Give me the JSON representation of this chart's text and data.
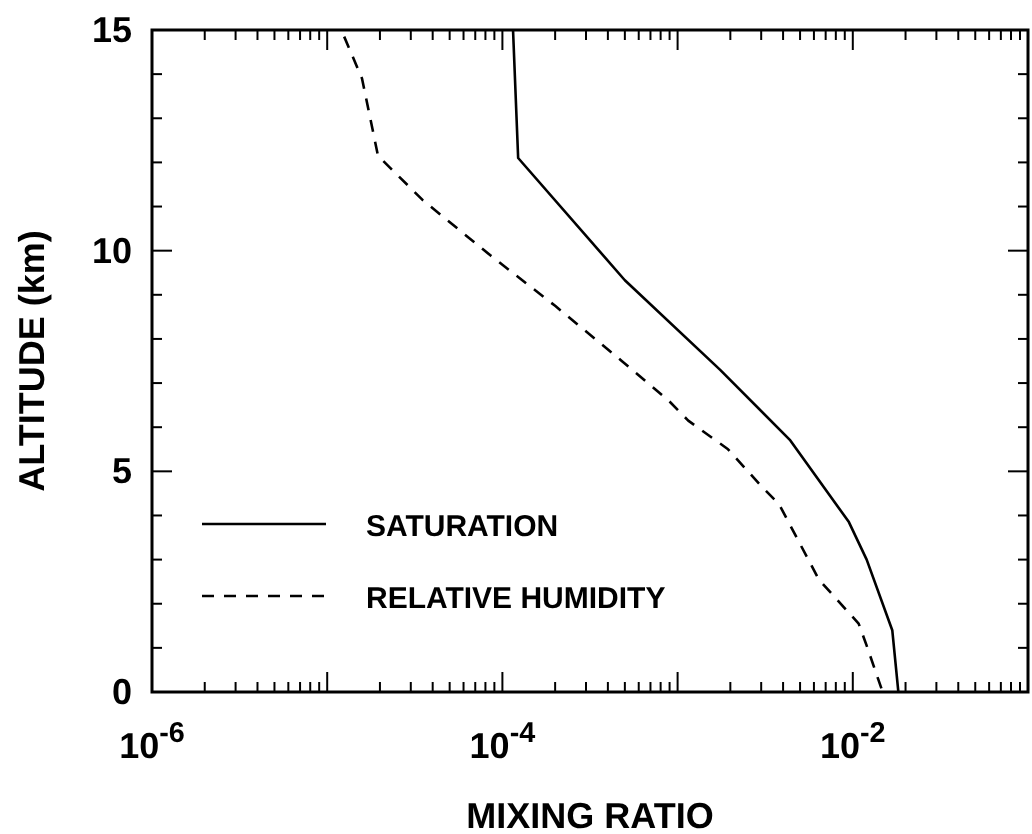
{
  "chart_data": {
    "type": "line",
    "xlabel": "MIXING RATIO",
    "ylabel": "ALTITUDE (km)",
    "log": "x",
    "xlim": [
      1e-06,
      0.1
    ],
    "ylim": [
      0,
      15
    ],
    "xticks": [
      {
        "value": 1e-06,
        "label": "10$^{-6}$"
      },
      {
        "value": 2e-06,
        "label": null
      },
      {
        "value": 3e-06,
        "label": null
      },
      {
        "value": 4e-06,
        "label": null
      },
      {
        "value": 5e-06,
        "label": null
      },
      {
        "value": 6e-06,
        "label": null
      },
      {
        "value": 7e-06,
        "label": null
      },
      {
        "value": 8e-06,
        "label": null
      },
      {
        "value": 9e-06,
        "label": null
      },
      {
        "value": 1e-05,
        "label": null
      },
      {
        "value": 2e-05,
        "label": null
      },
      {
        "value": 3e-05,
        "label": null
      },
      {
        "value": 4e-05,
        "label": null
      },
      {
        "value": 5e-05,
        "label": null
      },
      {
        "value": 6e-05,
        "label": null
      },
      {
        "value": 7e-05,
        "label": null
      },
      {
        "value": 8e-05,
        "label": null
      },
      {
        "value": 9e-05,
        "label": null
      },
      {
        "value": 0.0001,
        "label": "10$^{-4}$"
      },
      {
        "value": 0.0002,
        "label": null
      },
      {
        "value": 0.0003,
        "label": null
      },
      {
        "value": 0.0004,
        "label": null
      },
      {
        "value": 0.0005,
        "label": null
      },
      {
        "value": 0.0006,
        "label": null
      },
      {
        "value": 0.0007,
        "label": null
      },
      {
        "value": 0.0008,
        "label": null
      },
      {
        "value": 0.0009,
        "label": null
      },
      {
        "value": 0.001,
        "label": null
      },
      {
        "value": 0.002,
        "label": null
      },
      {
        "value": 0.003,
        "label": null
      },
      {
        "value": 0.004,
        "label": null
      },
      {
        "value": 0.005,
        "label": null
      },
      {
        "value": 0.006,
        "label": null
      },
      {
        "value": 0.007,
        "label": null
      },
      {
        "value": 0.008,
        "label": null
      },
      {
        "value": 0.009,
        "label": null
      },
      {
        "value": 0.01,
        "label": "10$^{-2}$"
      },
      {
        "value": 0.02,
        "label": null
      },
      {
        "value": 0.03,
        "label": null
      },
      {
        "value": 0.04,
        "label": null
      },
      {
        "value": 0.05,
        "label": null
      },
      {
        "value": 0.06,
        "label": null
      },
      {
        "value": 0.07,
        "label": null
      },
      {
        "value": 0.08,
        "label": null
      },
      {
        "value": 0.09,
        "label": null
      },
      {
        "value": 0.1,
        "label": null
      }
    ],
    "yticks": [
      0,
      {
        "value": 1,
        "label": null
      },
      {
        "value": 2,
        "label": null
      },
      {
        "value": 3,
        "label": null
      },
      {
        "value": 4,
        "label": null
      },
      5,
      {
        "value": 6,
        "label": null
      },
      {
        "value": 7,
        "label": null
      },
      {
        "value": 8,
        "label": null
      },
      {
        "value": 9,
        "label": null
      },
      10,
      {
        "value": 11,
        "label": null
      },
      {
        "value": 12,
        "label": null
      },
      {
        "value": 13,
        "label": null
      },
      {
        "value": 14,
        "label": null
      },
      15
    ],
    "legend": "left",
    "grid": false,
    "marker": "none",
    "series": [
      {
        "name": "SATURATION",
        "color": "#000000",
        "line_style": "solid",
        "x": [
          0.000115,
          0.000123,
          0.0005,
          0.00175,
          0.0044,
          0.0095,
          0.012,
          0.0168,
          0.0182
        ],
        "values": [
          15,
          12.1,
          9.33,
          7.3,
          5.7,
          3.85,
          3.0,
          1.4,
          0
        ]
      },
      {
        "name": "RELATIVE HUMIDITY",
        "color": "#000000",
        "line_style": "dashed",
        "x": [
          1.25e-05,
          1.58e-05,
          1.95e-05,
          3.5e-05,
          8.5e-05,
          0.0002,
          0.00048,
          0.00089,
          0.00115,
          0.00194,
          0.00295,
          0.0038,
          0.0064,
          0.0108,
          0.012,
          0.0148
        ],
        "values": [
          14.85,
          13.9,
          12.15,
          11.15,
          9.9,
          8.75,
          7.5,
          6.6,
          6.15,
          5.5,
          4.7,
          4.25,
          2.55,
          1.55,
          1.05,
          0
        ]
      }
    ]
  }
}
